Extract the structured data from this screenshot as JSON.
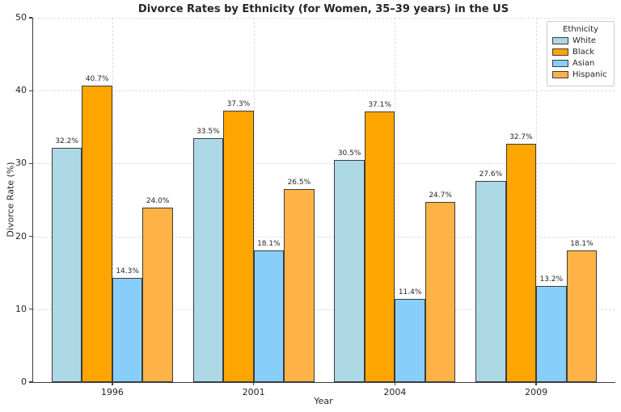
{
  "chart_data": {
    "type": "bar",
    "title": "Divorce Rates by Ethnicity (for Women, 35–39 years) in the US",
    "xlabel": "Year",
    "ylabel": "Divorce Rate (%)",
    "categories": [
      "1996",
      "2001",
      "2004",
      "2009"
    ],
    "series": [
      {
        "name": "White",
        "color": "#ADD8E6",
        "values": [
          32.2,
          33.5,
          30.5,
          27.6
        ]
      },
      {
        "name": "Black",
        "color": "#FFA500",
        "values": [
          40.7,
          37.3,
          37.1,
          32.7
        ]
      },
      {
        "name": "Asian",
        "color": "#87CEFA",
        "values": [
          14.3,
          18.1,
          11.4,
          13.2
        ]
      },
      {
        "name": "Hispanic",
        "color": "#FFB347",
        "values": [
          24.0,
          26.5,
          24.7,
          18.1
        ]
      }
    ],
    "bar_label_suffix": "%",
    "ylim": [
      0,
      50
    ],
    "yticks": [
      0,
      10,
      20,
      30,
      40,
      50
    ],
    "legend": {
      "title": "Ethnicity",
      "position": "upper right"
    },
    "grid": {
      "style": "dashed",
      "horizontal": true,
      "vertical": true
    },
    "colors": {
      "bar_edge": "#3C3C3C",
      "grid": "#DCDCDC",
      "text": "#262626"
    }
  }
}
